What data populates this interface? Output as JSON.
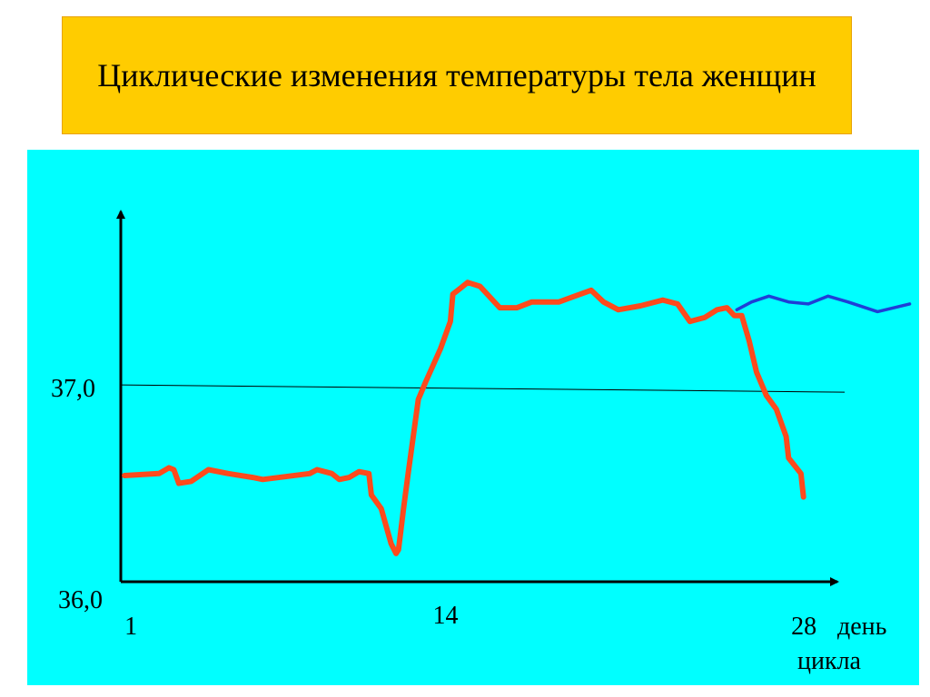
{
  "chart_data": {
    "type": "line",
    "title": "Циклические изменения температуры тела женщин",
    "xlabel": "день цикла",
    "xlim": [
      0.85,
      29.8
    ],
    "ylim": [
      36,
      37.88
    ],
    "xticks": [
      1,
      14,
      28
    ],
    "yticks": [
      {
        "value": 36,
        "label": "36,0"
      },
      {
        "value": 37,
        "label": "37,0"
      }
    ],
    "series": [
      {
        "color": "#ff4a1c",
        "x": [
          1,
          2.4,
          2.8,
          3.0,
          3.2,
          3.7,
          4.4,
          5.2,
          6.2,
          6.6,
          8.5,
          8.8,
          9.4,
          9.7,
          10.1,
          10.5,
          10.9,
          11.0,
          11.4,
          11.6,
          11.8,
          12.0,
          12.1,
          12.3,
          12.5,
          12.9,
          13.2,
          13.8,
          14.2,
          14.3,
          14.6,
          14.9,
          15.4,
          16.2,
          16.9,
          17.5,
          18.6,
          19.9,
          20.4,
          21.0,
          21.9,
          22.8,
          23.4,
          23.9,
          24.5,
          25.0,
          25.4,
          25.7,
          26.0,
          26.3,
          26.6,
          27.0,
          27.4,
          27.8,
          27.9,
          28.4,
          28.5
        ],
        "values": [
          36.54,
          36.55,
          36.58,
          36.57,
          36.5,
          36.51,
          36.57,
          36.55,
          36.53,
          36.52,
          36.55,
          36.57,
          36.55,
          36.52,
          36.53,
          36.56,
          36.55,
          36.44,
          36.37,
          36.28,
          36.19,
          36.14,
          36.16,
          36.37,
          36.56,
          36.93,
          37.02,
          37.19,
          37.33,
          37.47,
          37.5,
          37.53,
          37.51,
          37.4,
          37.4,
          37.43,
          37.43,
          37.49,
          37.43,
          37.39,
          37.41,
          37.44,
          37.42,
          37.33,
          37.35,
          37.39,
          37.4,
          37.36,
          37.36,
          37.23,
          37.07,
          36.95,
          36.88,
          36.74,
          36.63,
          36.55,
          36.43
        ]
      },
      {
        "color": "#1f3fd6",
        "x": [
          25.8,
          26.4,
          27.1,
          27.9,
          28.7,
          29.5,
          30.3,
          31.5,
          32.8
        ],
        "values": [
          37.39,
          37.43,
          37.46,
          37.43,
          37.42,
          37.46,
          37.43,
          37.38,
          37.42
        ]
      }
    ]
  }
}
